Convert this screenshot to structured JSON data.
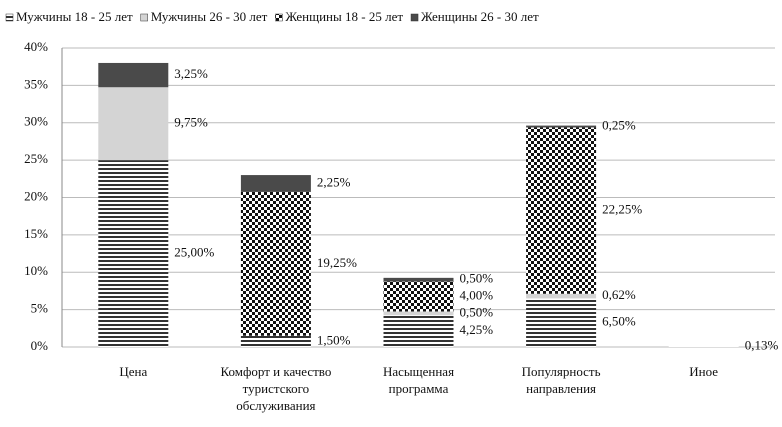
{
  "chart_data": {
    "type": "stacked-bar",
    "categories": [
      "Цена",
      "Комфорт и качество туристского обслуживания",
      "Насыщенная программа",
      "Популярность направления",
      "Иное"
    ],
    "series": [
      {
        "name": "Мужчины 18 - 25 лет",
        "color": "#555555",
        "pattern": "horizontal-lines",
        "values": [
          25.0,
          1.5,
          4.25,
          6.5,
          0.13
        ],
        "value_labels": [
          "25,00%",
          "1,50%",
          "4,25%",
          "6,50%",
          "0,13%"
        ]
      },
      {
        "name": "Мужчины 26 - 30 лет",
        "color": "#d4d4d4",
        "pattern": null,
        "values": [
          9.75,
          null,
          0.5,
          0.62,
          null
        ],
        "value_labels": [
          "9,75%",
          null,
          "0,50%",
          "0,62%",
          null
        ]
      },
      {
        "name": "Женщины 18 - 25 лет",
        "color": "#222222",
        "pattern": "checker",
        "values": [
          null,
          19.25,
          4.0,
          22.25,
          null
        ],
        "value_labels": [
          null,
          "19,25%",
          "4,00%",
          "22,25%",
          null
        ]
      },
      {
        "name": "Женщины 26 - 30 лет",
        "color": "#4a4a4a",
        "pattern": null,
        "values": [
          3.25,
          2.25,
          0.5,
          0.25,
          null
        ],
        "value_labels": [
          "3,25%",
          "2,25%",
          "0,50%",
          "0,25%",
          null
        ]
      }
    ],
    "ylim": [
      0,
      40
    ],
    "yticks": [
      {
        "value": 0,
        "label": "0%"
      },
      {
        "value": 5,
        "label": "5%"
      },
      {
        "value": 10,
        "label": "10%"
      },
      {
        "value": 15,
        "label": "15%"
      },
      {
        "value": 20,
        "label": "20%"
      },
      {
        "value": 25,
        "label": "25%"
      },
      {
        "value": 30,
        "label": "30%"
      },
      {
        "value": 35,
        "label": "35%"
      },
      {
        "value": 40,
        "label": "40%"
      }
    ],
    "grid": true,
    "legend": "top"
  }
}
